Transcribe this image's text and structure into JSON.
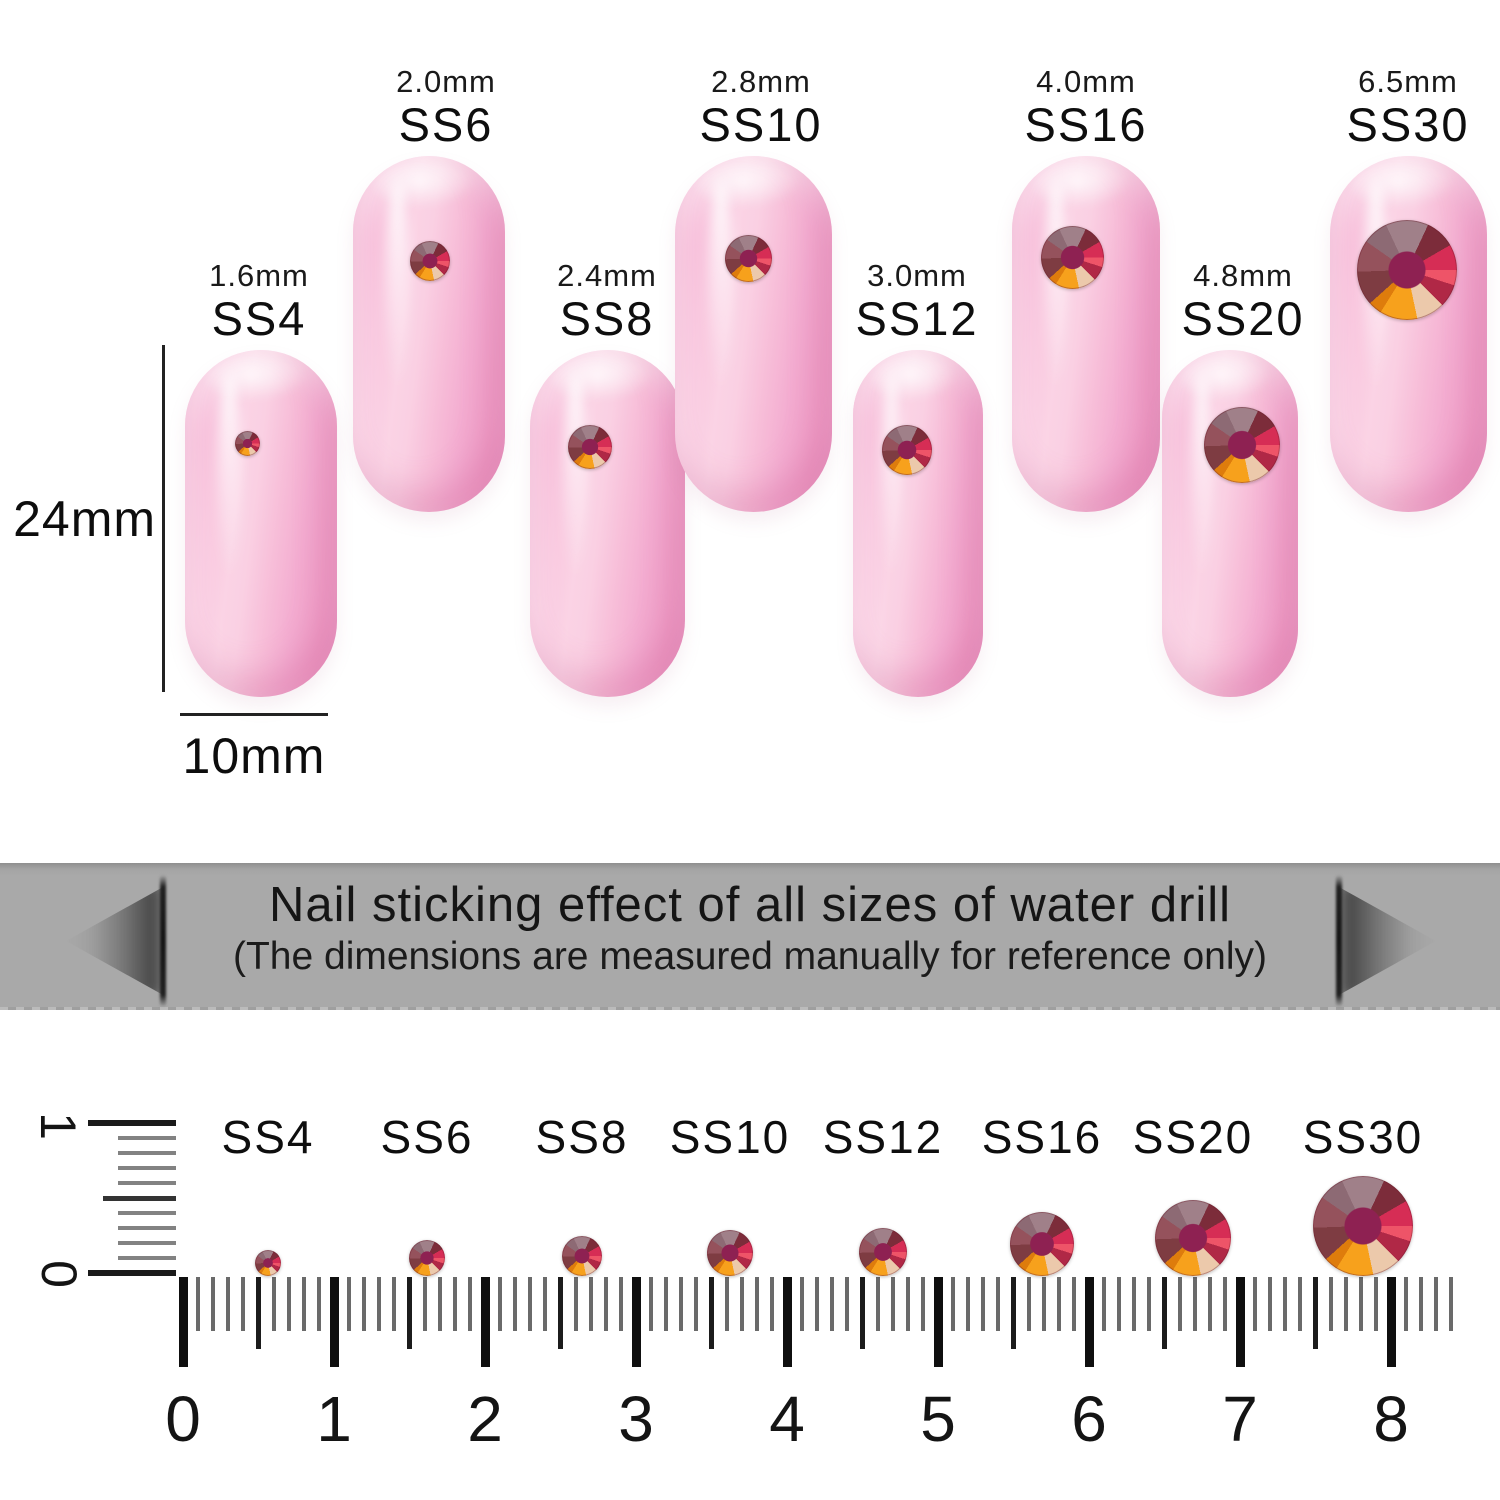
{
  "sizes": [
    {
      "ss": "SS4",
      "mm": "1.6mm"
    },
    {
      "ss": "SS6",
      "mm": "2.0mm"
    },
    {
      "ss": "SS8",
      "mm": "2.4mm"
    },
    {
      "ss": "SS10",
      "mm": "2.8mm"
    },
    {
      "ss": "SS12",
      "mm": "3.0mm"
    },
    {
      "ss": "SS16",
      "mm": "4.0mm"
    },
    {
      "ss": "SS20",
      "mm": "4.8mm"
    },
    {
      "ss": "SS30",
      "mm": "6.5mm"
    }
  ],
  "dimension_labels": {
    "nail_length": "24mm",
    "nail_width": "10mm"
  },
  "banner": {
    "title": "Nail sticking effect of all sizes of water drill",
    "subtitle": "(The dimensions are measured manually for reference only)"
  },
  "ruler": {
    "numbers": [
      "0",
      "1",
      "2",
      "3",
      "4",
      "5",
      "6",
      "7",
      "8"
    ],
    "vertical_numbers": [
      "1",
      "0"
    ]
  },
  "colors": {
    "nail_pink": "#f7b8d6",
    "gem_center": "#8e2152",
    "gem_orange": "#f7a11c",
    "gem_crimson": "#d62d55",
    "banner_gray": "#a9a9a9"
  }
}
